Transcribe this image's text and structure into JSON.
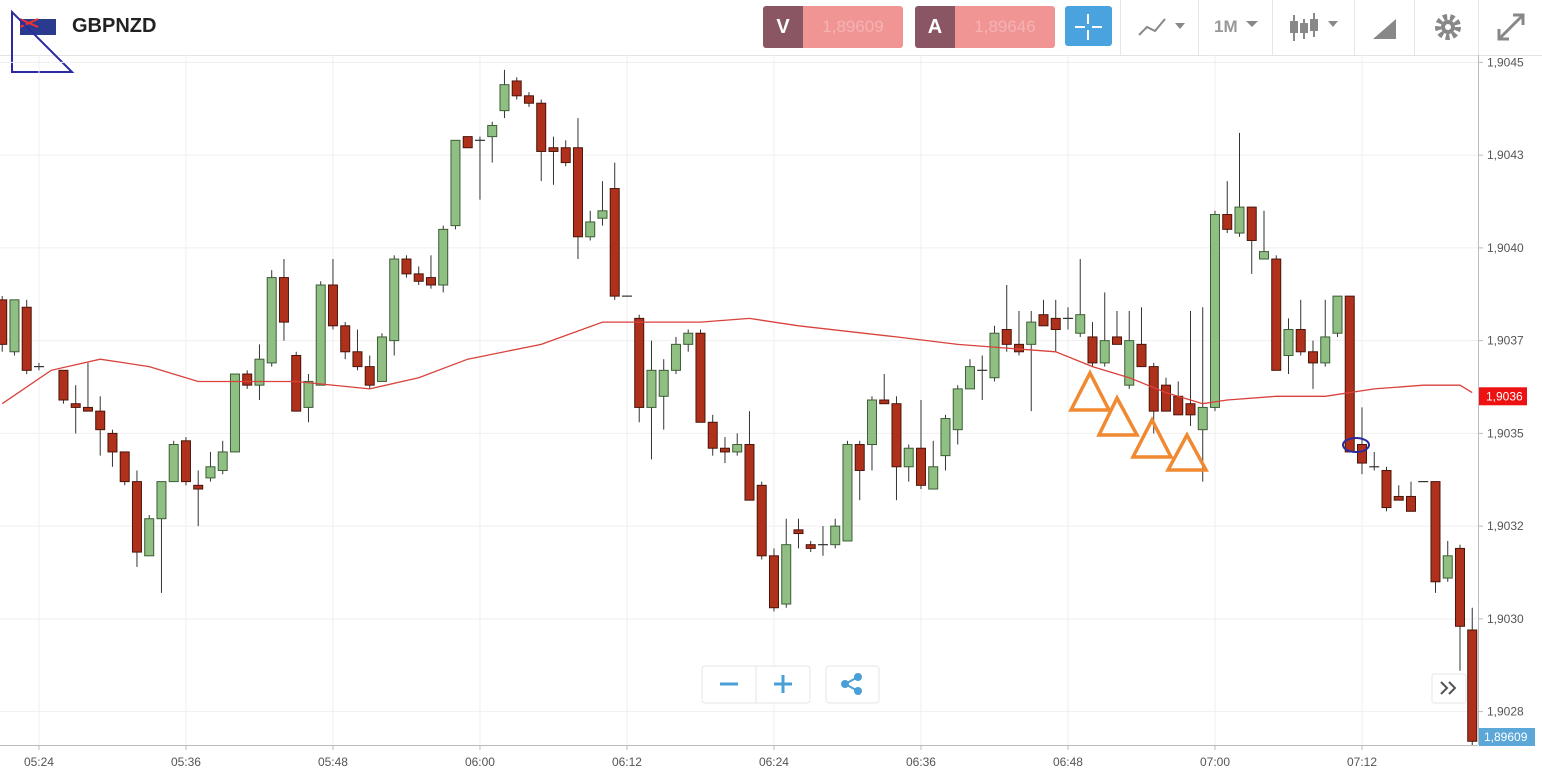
{
  "toolbar": {
    "symbol": "GBPNZD",
    "sell_label": "V",
    "sell_price": "1,89609",
    "buy_label": "A",
    "buy_price": "1,89646",
    "timeframe": "1M"
  },
  "chart_data": {
    "type": "candlestick",
    "xlim": [
      -0.18,
      120.47
    ],
    "ylim": [
      1.90266,
      1.90452
    ],
    "xticks": [
      {
        "value": 3,
        "label": "05:24"
      },
      {
        "value": 15,
        "label": "05:36"
      },
      {
        "value": 27,
        "label": "05:48"
      },
      {
        "value": 39,
        "label": "06:00"
      },
      {
        "value": 51,
        "label": "06:12"
      },
      {
        "value": 63,
        "label": "06:24"
      },
      {
        "value": 75,
        "label": "06:36"
      },
      {
        "value": 87,
        "label": "06:48"
      },
      {
        "value": 99,
        "label": "07:00"
      },
      {
        "value": 111,
        "label": "07:12"
      }
    ],
    "yticks": [
      {
        "value": 1.9045,
        "label": "1,9045"
      },
      {
        "value": 1.90425,
        "label": "1,9043"
      },
      {
        "value": 1.904,
        "label": "1,9040"
      },
      {
        "value": 1.90375,
        "label": "1,9037"
      },
      {
        "value": 1.9035,
        "label": "1,9035"
      },
      {
        "value": 1.90325,
        "label": "1,9032"
      },
      {
        "value": 1.903,
        "label": "1,9030"
      },
      {
        "value": 1.90275,
        "label": "1,9028"
      }
    ],
    "grid": true,
    "up_color": "#8fbf83",
    "down_color": "#b0311b",
    "open": [
      1.90386,
      1.90372,
      1.90384,
      1.90368,
      null,
      1.90367,
      1.90358,
      1.90357,
      1.90356,
      1.9035,
      1.90345,
      1.90337,
      1.90317,
      1.90327,
      1.90337,
      1.90348,
      1.90336,
      1.90338,
      1.9034,
      1.90345,
      1.90366,
      1.90363,
      1.90369,
      1.90392,
      1.90371,
      1.90357,
      1.90363,
      1.9039,
      1.90379,
      1.90372,
      1.90368,
      1.90364,
      1.90375,
      1.90397,
      1.90393,
      1.90392,
      1.9039,
      1.90406,
      1.9043,
      1.90429,
      1.9043,
      1.90437,
      1.90445,
      1.90441,
      1.90439,
      1.90427,
      1.90427,
      1.90427,
      1.90403,
      1.90408,
      1.90416,
      1.90387,
      1.90381,
      1.90357,
      1.9036,
      1.90367,
      1.90374,
      1.90377,
      1.90353,
      1.90346,
      1.90345,
      1.90347,
      1.90336,
      1.90317,
      1.90304,
      1.90324,
      1.9032,
      1.9032,
      1.9032,
      1.90321,
      1.90347,
      1.90347,
      1.90359,
      1.90358,
      1.90341,
      1.90346,
      1.90335,
      1.90344,
      1.90351,
      1.90362,
      1.90367,
      1.90365,
      1.90378,
      1.90374,
      1.90374,
      1.90382,
      1.90381,
      1.90381,
      1.90377,
      1.90376,
      1.90369,
      1.90376,
      1.90363,
      1.90374,
      1.90368,
      1.90363,
      1.9036,
      1.90358,
      1.90351,
      1.90357,
      1.90409,
      1.90404,
      1.90411,
      1.90397,
      1.90397,
      1.90371,
      1.90378,
      1.90372,
      1.90369,
      1.90377,
      1.90387,
      1.90347,
      1.90341,
      1.9034,
      1.90333,
      1.90333,
      1.90337,
      1.90337,
      1.90311,
      1.90319,
      1.90297
    ],
    "high": [
      1.90387,
      1.90386,
      1.90386,
      1.90369,
      null,
      1.90367,
      1.90363,
      1.90369,
      1.9036,
      1.90351,
      1.90345,
      1.9034,
      1.90328,
      1.90337,
      1.90348,
      1.90349,
      1.9034,
      1.90345,
      1.90348,
      1.90366,
      1.90367,
      1.90374,
      1.90394,
      1.90397,
      1.90372,
      1.90366,
      1.90391,
      1.90397,
      1.9038,
      1.90378,
      1.90371,
      1.90377,
      1.90398,
      1.90398,
      1.90395,
      1.90398,
      1.90406,
      1.90429,
      1.9043,
      1.9043,
      1.90434,
      1.90448,
      1.90446,
      1.90442,
      1.9044,
      1.9043,
      1.90429,
      1.90435,
      1.9041,
      1.90418,
      1.90423,
      1.90387,
      1.90382,
      1.90375,
      1.9037,
      1.90376,
      1.90378,
      1.90378,
      1.90355,
      1.90349,
      1.9035,
      1.90356,
      1.90337,
      1.90319,
      1.90327,
      1.90327,
      1.90321,
      1.90325,
      1.90327,
      1.90348,
      1.90348,
      1.9036,
      1.90366,
      1.9036,
      1.90347,
      1.90359,
      1.90348,
      1.90355,
      1.90363,
      1.9037,
      1.90371,
      1.90379,
      1.9039,
      1.90383,
      1.90383,
      1.90386,
      1.90386,
      1.90384,
      1.90397,
      1.9038,
      1.90388,
      1.90383,
      1.90383,
      1.90384,
      1.90369,
      1.90365,
      1.90364,
      1.90383,
      1.90384,
      1.9041,
      1.90418,
      1.90431,
      1.90411,
      1.9041,
      1.90398,
      1.90381,
      1.90386,
      1.90375,
      1.90386,
      1.90387,
      1.90387,
      1.90357,
      1.90345,
      1.90341,
      1.90336,
      1.90337,
      1.90337,
      1.90337,
      1.90321,
      1.9032,
      1.90303
    ],
    "low": [
      1.90372,
      1.90371,
      1.90366,
      1.90367,
      null,
      1.90358,
      1.9035,
      1.90356,
      1.90344,
      1.90341,
      1.90336,
      1.90314,
      1.90317,
      1.90307,
      1.90337,
      1.90336,
      1.90325,
      1.90337,
      1.90339,
      1.90345,
      1.90362,
      1.90359,
      1.90368,
      1.90375,
      1.90356,
      1.90353,
      1.90363,
      1.90378,
      1.9037,
      1.90367,
      1.90362,
      1.90364,
      1.90371,
      1.90392,
      1.9039,
      1.90389,
      1.90388,
      1.90405,
      1.90427,
      1.90413,
      1.90423,
      1.90435,
      1.9044,
      1.90438,
      1.90418,
      1.90417,
      1.90422,
      1.90397,
      1.90402,
      1.90406,
      1.90386,
      1.90387,
      1.90353,
      1.90343,
      1.90351,
      1.90366,
      1.90372,
      1.90353,
      1.90344,
      1.90342,
      1.90344,
      1.90332,
      1.90316,
      1.90302,
      1.90303,
      1.90319,
      1.90318,
      1.90317,
      1.90319,
      1.90321,
      1.90332,
      1.9034,
      1.90358,
      1.90332,
      1.90337,
      1.90335,
      1.90335,
      1.9034,
      1.90347,
      1.90362,
      1.90359,
      1.90364,
      1.90372,
      1.90371,
      1.90356,
      1.90379,
      1.90372,
      1.90378,
      1.90376,
      1.90368,
      1.90368,
      1.90374,
      1.90362,
      1.90368,
      1.9035,
      1.90356,
      1.90355,
      1.90352,
      1.90337,
      1.90356,
      1.90404,
      1.90403,
      1.90393,
      1.90397,
      1.90367,
      1.90366,
      1.90371,
      1.90362,
      1.90368,
      1.90376,
      1.90345,
      1.90339,
      1.9034,
      1.90329,
      1.90332,
      1.90329,
      1.90337,
      1.90307,
      1.9031,
      1.90286,
      1.90266
    ],
    "close": [
      1.90374,
      1.90386,
      1.90367,
      1.90368,
      null,
      1.90359,
      1.90357,
      1.90356,
      1.90351,
      1.90345,
      1.90337,
      1.90318,
      1.90327,
      1.90337,
      1.90347,
      1.90337,
      1.90335,
      1.90341,
      1.90345,
      1.90366,
      1.90363,
      1.9037,
      1.90392,
      1.9038,
      1.90356,
      1.90364,
      1.9039,
      1.90379,
      1.90372,
      1.90368,
      1.90363,
      1.90376,
      1.90397,
      1.90393,
      1.90391,
      1.9039,
      1.90405,
      1.90429,
      1.90427,
      1.90429,
      1.90433,
      1.90444,
      1.90441,
      1.90439,
      1.90426,
      1.90426,
      1.90423,
      1.90403,
      1.90407,
      1.9041,
      1.90387,
      1.90387,
      1.90357,
      1.90367,
      1.90367,
      1.90374,
      1.90377,
      1.90353,
      1.90346,
      1.90345,
      1.90347,
      1.90332,
      1.90317,
      1.90303,
      1.9032,
      1.90323,
      1.90319,
      1.9032,
      1.90325,
      1.90347,
      1.9034,
      1.90359,
      1.90358,
      1.90341,
      1.90346,
      1.90336,
      1.90341,
      1.90354,
      1.90362,
      1.90368,
      1.90367,
      1.90377,
      1.90374,
      1.90372,
      1.9038,
      1.90379,
      1.90378,
      1.90381,
      1.90382,
      1.90369,
      1.90375,
      1.90374,
      1.90375,
      1.90368,
      1.90356,
      1.90356,
      1.90355,
      1.90355,
      1.90357,
      1.90409,
      1.90405,
      1.90411,
      1.90402,
      1.90399,
      1.90367,
      1.90378,
      1.90372,
      1.90369,
      1.90376,
      1.90387,
      1.90345,
      1.90342,
      1.90341,
      1.9033,
      1.90332,
      1.90329,
      1.90337,
      1.9031,
      1.90317,
      1.90298,
      1.90267
    ],
    "moving_average": {
      "color": "#d9413b",
      "x": [
        0,
        4,
        8,
        12,
        16,
        20,
        24,
        30,
        34,
        38,
        44,
        49,
        53,
        57,
        61,
        65,
        73,
        78,
        82,
        86,
        89,
        92,
        95,
        98,
        100,
        104,
        108,
        112,
        116,
        119,
        120
      ],
      "values": [
        1.90358,
        1.90367,
        1.9037,
        1.90368,
        1.90364,
        1.90364,
        1.90364,
        1.90362,
        1.90365,
        1.9037,
        1.90374,
        1.9038,
        1.9038,
        1.9038,
        1.90381,
        1.90379,
        1.90376,
        1.90374,
        1.90373,
        1.90372,
        1.90368,
        1.90365,
        1.90361,
        1.90358,
        1.90359,
        1.9036,
        1.9036,
        1.90362,
        1.90363,
        1.90363,
        1.90361
      ]
    },
    "last_price": {
      "value": 1.9036,
      "label": "1,9036",
      "color": "#ee1111"
    },
    "bid_label": "1,89609"
  }
}
